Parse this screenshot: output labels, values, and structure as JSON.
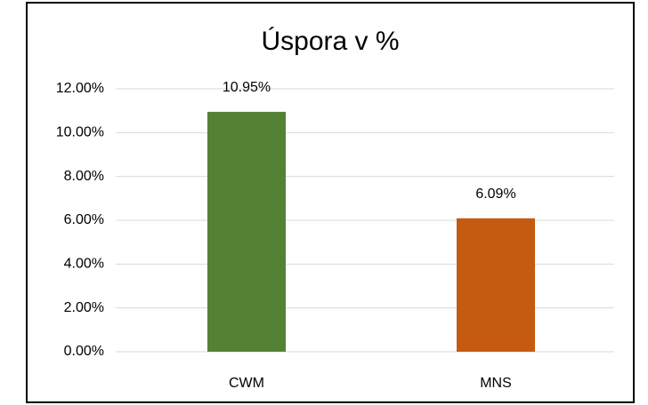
{
  "chart_data": {
    "type": "bar",
    "title": "Úspora v %",
    "categories": [
      "CWM",
      "MNS"
    ],
    "values": [
      10.95,
      6.09
    ],
    "value_labels": [
      "10.95%",
      "6.09%"
    ],
    "colors": [
      "#548235",
      "#c55a11"
    ],
    "ylim": [
      0,
      12
    ],
    "yticks": [
      {
        "value": 0,
        "label": "0.00%"
      },
      {
        "value": 2,
        "label": "2.00%"
      },
      {
        "value": 4,
        "label": "4.00%"
      },
      {
        "value": 6,
        "label": "6.00%"
      },
      {
        "value": 8,
        "label": "8.00%"
      },
      {
        "value": 10,
        "label": "10.00%"
      },
      {
        "value": 12,
        "label": "12.00%"
      }
    ],
    "grid": true
  }
}
